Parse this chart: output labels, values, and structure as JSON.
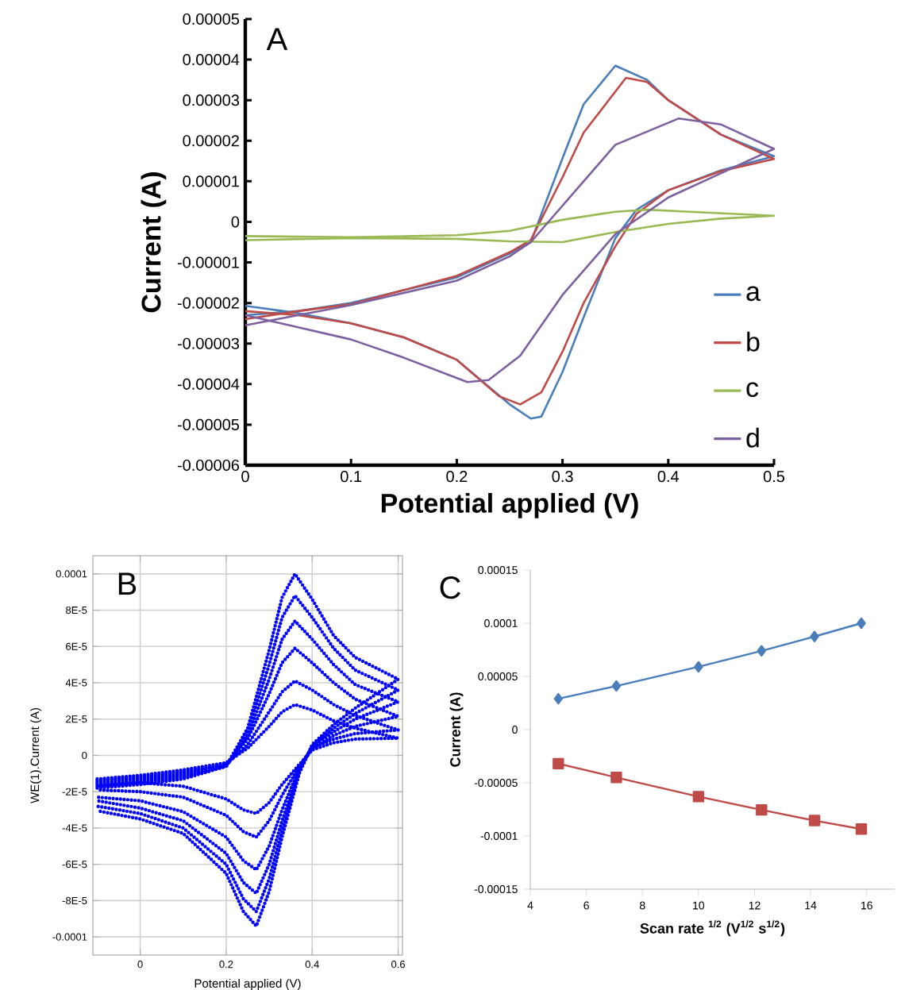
{
  "chart_data": [
    {
      "type": "line",
      "xlabel": "Potential applied (V)",
      "ylabel": "Current (A)",
      "annotations": [
        "A"
      ],
      "xlim": [
        0,
        0.5
      ],
      "xticks": [
        0,
        0.1,
        0.2,
        0.3,
        0.4,
        0.5
      ],
      "ylim": [
        -6e-05,
        5e-05
      ],
      "yticks": [
        {
          "value": 5e-05,
          "label": "0.00005"
        },
        {
          "value": 4e-05,
          "label": "0.00004"
        },
        {
          "value": 3e-05,
          "label": "0.00003"
        },
        {
          "value": 2e-05,
          "label": "0.00002"
        },
        {
          "value": 1e-05,
          "label": "0.00001"
        },
        0,
        {
          "value": -1e-05,
          "label": "-0.00001"
        },
        {
          "value": -2e-05,
          "label": "-0.00002"
        },
        {
          "value": -3e-05,
          "label": "-0.00003"
        },
        {
          "value": -4e-05,
          "label": "-0.00004"
        },
        {
          "value": -5e-05,
          "label": "-0.00005"
        },
        {
          "value": -6e-05,
          "label": "-0.00006"
        }
      ],
      "legend": "bottom right",
      "series": [
        {
          "name": "a",
          "color": "#4a7ebb",
          "x": [
            0,
            0.05,
            0.1,
            0.2,
            0.25,
            0.27,
            0.3,
            0.32,
            0.35,
            0.38,
            0.4,
            0.45,
            0.5,
            0.45,
            0.4,
            0.37,
            0.35,
            0.32,
            0.3,
            0.28,
            0.27,
            0.25,
            0.2,
            0.15,
            0.1,
            0.05,
            0
          ],
          "values": [
            -2.3e-05,
            -2.2e-05,
            -2e-05,
            -1.37e-05,
            -7.8e-06,
            -5e-06,
            1.57e-05,
            2.9e-05,
            3.85e-05,
            3.5e-05,
            3e-05,
            2.15e-05,
            1.62e-05,
            1.27e-05,
            7.8e-06,
            3e-06,
            -4e-06,
            -2.35e-05,
            -3.7e-05,
            -4.8e-05,
            -4.85e-05,
            -4.5e-05,
            -3.4e-05,
            -2.85e-05,
            -2.5e-05,
            -2.25e-05,
            -2.07e-05
          ]
        },
        {
          "name": "b",
          "color": "#be4b48",
          "x": [
            0,
            0.05,
            0.1,
            0.2,
            0.25,
            0.27,
            0.3,
            0.32,
            0.36,
            0.38,
            0.4,
            0.45,
            0.5,
            0.45,
            0.4,
            0.37,
            0.35,
            0.32,
            0.3,
            0.28,
            0.26,
            0.24,
            0.2,
            0.15,
            0.1,
            0.05,
            0
          ],
          "values": [
            -2.4e-05,
            -2.2e-05,
            -2.03e-05,
            -1.33e-05,
            -7.5e-06,
            -4.5e-06,
            1.1e-05,
            2.2e-05,
            3.55e-05,
            3.45e-05,
            3e-05,
            2.15e-05,
            1.55e-05,
            1.25e-05,
            7.8e-06,
            2e-06,
            -6e-06,
            -2e-05,
            -3.2e-05,
            -4.2e-05,
            -4.5e-05,
            -4.3e-05,
            -3.4e-05,
            -2.85e-05,
            -2.5e-05,
            -2.3e-05,
            -2.2e-05
          ]
        },
        {
          "name": "c",
          "color": "#98b954",
          "x": [
            0,
            0.1,
            0.2,
            0.25,
            0.3,
            0.35,
            0.38,
            0.42,
            0.5,
            0.45,
            0.4,
            0.35,
            0.3,
            0.25,
            0.2,
            0.1,
            0
          ],
          "values": [
            -3.5e-06,
            -3.8e-06,
            -3.3e-06,
            -2.2e-06,
            5e-07,
            2.5e-06,
            3e-06,
            2.5e-06,
            1.5e-06,
            8e-07,
            -5e-07,
            -2.5e-06,
            -5e-06,
            -4.8e-06,
            -4.2e-06,
            -4e-06,
            -4.5e-06
          ]
        },
        {
          "name": "d",
          "color": "#7d60a0",
          "x": [
            0,
            0.05,
            0.1,
            0.2,
            0.25,
            0.27,
            0.3,
            0.35,
            0.41,
            0.45,
            0.5,
            0.45,
            0.4,
            0.35,
            0.3,
            0.26,
            0.23,
            0.21,
            0.15,
            0.1,
            0.05,
            0
          ],
          "values": [
            -2.55e-05,
            -2.3e-05,
            -2.05e-05,
            -1.45e-05,
            -8.5e-06,
            -5e-06,
            4e-06,
            1.9e-05,
            2.55e-05,
            2.4e-05,
            1.8e-05,
            1.2e-05,
            6e-06,
            -3e-06,
            -1.8e-05,
            -3.3e-05,
            -3.9e-05,
            -3.95e-05,
            -3.35e-05,
            -2.9e-05,
            -2.6e-05,
            -2.3e-05
          ]
        }
      ]
    },
    {
      "type": "line",
      "line_style": "dotted",
      "xlabel": "Potential applied (V)",
      "ylabel": "WE(1).Current (A)",
      "annotations": [
        "B"
      ],
      "xlim": [
        -0.11,
        0.61
      ],
      "xticks": [
        0,
        0.2,
        0.4,
        0.6
      ],
      "ylim": [
        -0.00011,
        0.00011
      ],
      "yticks": [
        {
          "value": 0.0001,
          "label": "0.0001"
        },
        {
          "value": 8e-05,
          "label": "8E-5"
        },
        {
          "value": 6e-05,
          "label": "6E-5"
        },
        {
          "value": 4e-05,
          "label": "4E-5"
        },
        {
          "value": 2e-05,
          "label": "2E-5"
        },
        0,
        {
          "value": -2e-05,
          "label": "-2E-5"
        },
        {
          "value": -4e-05,
          "label": "-4E-5"
        },
        {
          "value": -6e-05,
          "label": "-6E-5"
        },
        {
          "value": -8e-05,
          "label": "-8E-5"
        },
        {
          "value": -0.0001,
          "label": "-0.0001"
        }
      ],
      "grid": true,
      "x": [
        -0.1,
        0,
        0.1,
        0.2,
        0.25,
        0.3,
        0.33,
        0.36,
        0.4,
        0.45,
        0.5,
        0.6,
        0.5,
        0.45,
        0.4,
        0.37,
        0.33,
        0.3,
        0.27,
        0.24,
        0.2,
        0.1,
        0,
        -0.1
      ],
      "series": [
        {
          "color": "#0000ff",
          "values": [
            -1.8e-05,
            -1.6e-05,
            -1.3e-05,
            -6e-06,
            1.5e-05,
            5.8e-05,
            8.7e-05,
            0.0001,
            8.6e-05,
            6.6e-05,
            5.4e-05,
            4.2e-05,
            2.6e-05,
            1.7e-05,
            6e-06,
            -1e-05,
            -4.5e-05,
            -7.5e-05,
            -9.4e-05,
            -8.6e-05,
            -6.5e-05,
            -4.3e-05,
            -3.5e-05,
            -3.05e-05
          ]
        },
        {
          "color": "#0000ff",
          "values": [
            -1.7e-05,
            -1.5e-05,
            -1.2e-05,
            -6e-06,
            1.3e-05,
            5e-05,
            7.6e-05,
            8.8e-05,
            7.6e-05,
            5.9e-05,
            4.7e-05,
            3.6e-05,
            2.3e-05,
            1.5e-05,
            5e-06,
            -9e-06,
            -4.1e-05,
            -6.8e-05,
            -8.6e-05,
            -7.9e-05,
            -6e-05,
            -4e-05,
            -3.2e-05,
            -2.8e-05
          ]
        },
        {
          "color": "#0000ff",
          "values": [
            -1.6e-05,
            -1.4e-05,
            -1.1e-05,
            -6e-06,
            1.1e-05,
            4.2e-05,
            6.4e-05,
            7.4e-05,
            6.4e-05,
            5e-05,
            3.9e-05,
            2.95e-05,
            2e-05,
            1.3e-05,
            5e-06,
            -8e-06,
            -3.6e-05,
            -6e-05,
            -7.6e-05,
            -7e-05,
            -5.4e-05,
            -3.6e-05,
            -2.9e-05,
            -2.5e-05
          ]
        },
        {
          "color": "#0000ff",
          "values": [
            -1.5e-05,
            -1.3e-05,
            -1e-05,
            -5e-06,
            9e-06,
            3.4e-05,
            5.1e-05,
            5.9e-05,
            5.1e-05,
            4e-05,
            3.1e-05,
            2.15e-05,
            1.6e-05,
            1.1e-05,
            4e-06,
            -7e-06,
            -3e-05,
            -5e-05,
            -6.3e-05,
            -5.8e-05,
            -4.5e-05,
            -3.1e-05,
            -2.5e-05,
            -2.3e-05
          ]
        },
        {
          "color": "#0000ff",
          "values": [
            -1.4e-05,
            -1.2e-05,
            -9e-06,
            -5e-06,
            6e-06,
            2.4e-05,
            3.5e-05,
            4.1e-05,
            3.6e-05,
            2.8e-05,
            2.2e-05,
            1.4e-05,
            1.2e-05,
            9e-06,
            4e-06,
            -6e-06,
            -2.2e-05,
            -3.6e-05,
            -4.5e-05,
            -4.2e-05,
            -3.3e-05,
            -2.3e-05,
            -2e-05,
            -1.9e-05
          ]
        },
        {
          "color": "#0000ff",
          "values": [
            -1.3e-05,
            -1.1e-05,
            -8e-06,
            -4e-06,
            4e-06,
            1.6e-05,
            2.4e-05,
            2.8e-05,
            2.5e-05,
            1.9e-05,
            1.5e-05,
            9.5e-06,
            9e-06,
            7e-06,
            3e-06,
            -5e-06,
            -1.6e-05,
            -2.6e-05,
            -3.2e-05,
            -3e-05,
            -2.4e-05,
            -1.7e-05,
            -1.5e-05,
            -1.7e-05
          ]
        }
      ]
    },
    {
      "type": "line",
      "xlabel": "Scan rate $^{1/2}$ (V$^{1/2}$ s$^{1/2}$)",
      "ylabel": "Current (A)",
      "annotations": [
        "C"
      ],
      "xlim": [
        4,
        17
      ],
      "xticks": [
        4,
        6,
        8,
        10,
        12,
        14,
        16
      ],
      "ylim": [
        -0.00015,
        0.00015
      ],
      "yticks": [
        {
          "value": 0.00015,
          "label": "0.00015"
        },
        {
          "value": 0.0001,
          "label": "0.0001"
        },
        {
          "value": 5e-05,
          "label": "0.00005"
        },
        0,
        {
          "value": -5e-05,
          "label": "-0.00005"
        },
        {
          "value": -0.0001,
          "label": "-0.0001"
        },
        {
          "value": -0.00015,
          "label": "-0.00015"
        }
      ],
      "x": [
        5,
        7.07,
        10,
        12.25,
        14.14,
        15.81
      ],
      "series": [
        {
          "color": "#4a7ebb",
          "marker": "diamond",
          "values": [
            2.9e-05,
            4.1e-05,
            5.9e-05,
            7.4e-05,
            8.75e-05,
            0.0001
          ]
        },
        {
          "color": "#be4b48",
          "marker": "square",
          "values": [
            -3.2e-05,
            -4.5e-05,
            -6.3e-05,
            -7.55e-05,
            -8.55e-05,
            -9.35e-05
          ]
        }
      ]
    }
  ]
}
